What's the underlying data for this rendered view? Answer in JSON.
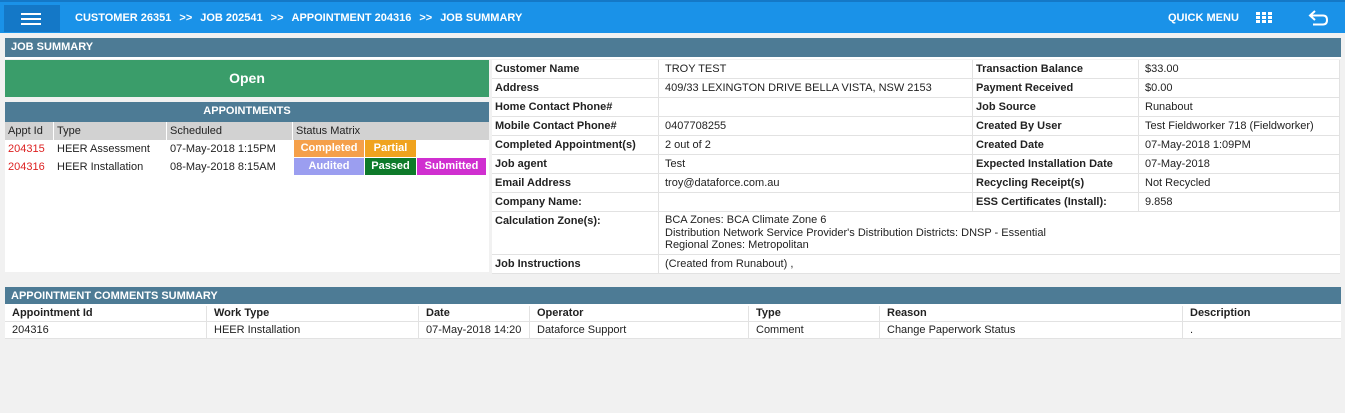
{
  "header": {
    "breadcrumbs": [
      "CUSTOMER 26351",
      "JOB 202541",
      "APPOINTMENT 204316",
      "JOB SUMMARY"
    ],
    "separator": ">>",
    "quick_menu": "QUICK MENU",
    "icons": [
      "menu-icon",
      "grid-icon",
      "back-icon"
    ]
  },
  "job_summary": {
    "title": "JOB SUMMARY",
    "status": "Open",
    "status_color": "#3a9d6a"
  },
  "appointments": {
    "title": "APPOINTMENTS",
    "columns": [
      "Appt Id",
      "Type",
      "Scheduled",
      "Status Matrix"
    ],
    "rows": [
      {
        "id": "204315",
        "type": "HEER Assessment",
        "scheduled": "07-May-2018 1:15PM",
        "status": [
          {
            "label": "Completed",
            "color": "#f5a04a"
          },
          {
            "label": "Partial",
            "color": "#f0a31e"
          }
        ]
      },
      {
        "id": "204316",
        "type": "HEER Installation",
        "scheduled": "08-May-2018 8:15AM",
        "status": [
          {
            "label": "Audited",
            "color": "#9b9ef0"
          },
          {
            "label": "Passed",
            "color": "#0e7a2a"
          },
          {
            "label": "Submitted",
            "color": "#d02fd0"
          }
        ]
      }
    ]
  },
  "details": {
    "left": [
      {
        "label": "Customer Name",
        "value": "TROY TEST"
      },
      {
        "label": "Address",
        "value": "409/33 LEXINGTON DRIVE BELLA VISTA, NSW 2153"
      },
      {
        "label": "Home Contact Phone#",
        "value": ""
      },
      {
        "label": "Mobile Contact Phone#",
        "value": "0407708255"
      },
      {
        "label": "Completed Appointment(s)",
        "value": "2 out of 2"
      },
      {
        "label": "Job agent",
        "value": "Test"
      },
      {
        "label": "Email Address",
        "value": "troy@dataforce.com.au"
      },
      {
        "label": "Company Name:",
        "value": ""
      }
    ],
    "right": [
      {
        "label": "Transaction Balance",
        "value": "$33.00"
      },
      {
        "label": "Payment Received",
        "value": "$0.00"
      },
      {
        "label": "Job Source",
        "value": "Runabout"
      },
      {
        "label": "Created By User",
        "value": "Test Fieldworker 718 (Fieldworker)"
      },
      {
        "label": "Created Date",
        "value": "07-May-2018 1:09PM"
      },
      {
        "label": "Expected Installation Date",
        "value": "07-May-2018"
      },
      {
        "label": "Recycling Receipt(s)",
        "value": "Not Recycled"
      },
      {
        "label": "ESS Certificates (Install):",
        "value": "9.858"
      }
    ],
    "calculation_zones": {
      "label": "Calculation Zone(s):",
      "lines": [
        "BCA Zones: BCA Climate Zone 6",
        "Distribution Network Service Provider's Distribution Districts: DNSP - Essential",
        "Regional Zones: Metropolitan"
      ]
    },
    "job_instructions": {
      "label": "Job Instructions",
      "value": "(Created from Runabout) ,"
    }
  },
  "comments": {
    "title": "APPOINTMENT COMMENTS SUMMARY",
    "columns": [
      "Appointment Id",
      "Work Type",
      "Date",
      "Operator",
      "Type",
      "Reason",
      "Description"
    ],
    "rows": [
      [
        "204316",
        "HEER Installation",
        "07-May-2018 14:20",
        "Dataforce Support",
        "Comment",
        "Change Paperwork Status",
        "."
      ]
    ]
  }
}
